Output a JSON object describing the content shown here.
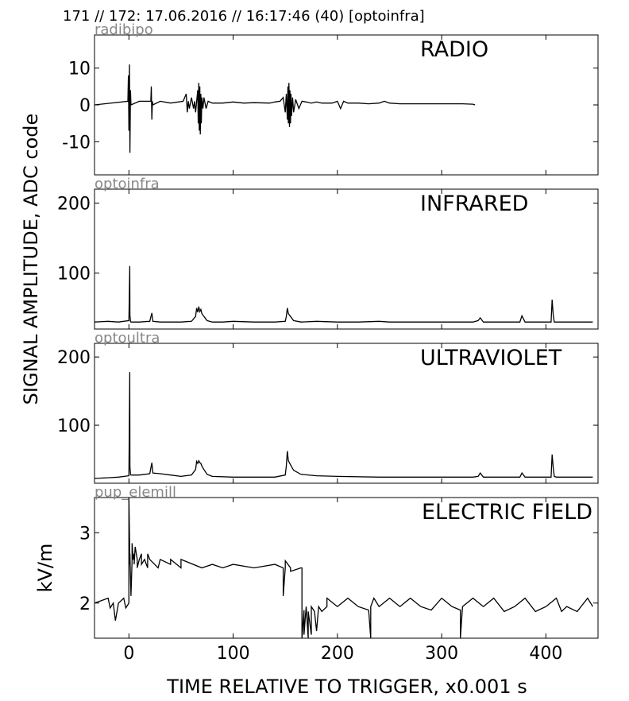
{
  "header": "171 // 172:   17.06.2016 // 16:17:46 (40)  [optoinfra]",
  "ylabel_shared": "SIGNAL AMPLITUDE,  ADC code",
  "xlabel": "TIME RELATIVE TO TRIGGER,   x0.001 s",
  "x_ticks": [
    "0",
    "100",
    "200",
    "300",
    "400"
  ],
  "chart_data": [
    {
      "type": "line",
      "channel": "radibipo",
      "title": "RADIO",
      "ylabel": "",
      "xlim": [
        -33,
        450
      ],
      "ylim": [
        -19,
        19
      ],
      "yticks": [
        10,
        0,
        -10
      ],
      "ytick_labels": [
        "10",
        "0",
        "-10"
      ],
      "series": [
        {
          "x": [
            -33,
            -1,
            -0.5,
            0,
            0.5,
            1,
            1.5,
            2,
            10,
            21,
            21.5,
            22,
            22.5,
            23,
            30,
            40,
            52,
            55,
            56,
            57,
            58,
            60,
            62,
            63,
            64,
            65,
            66,
            66.5,
            67,
            67.5,
            68,
            68.5,
            69,
            69.5,
            70,
            71,
            72,
            74,
            76,
            80,
            90,
            100,
            110,
            120,
            135,
            140,
            145,
            148,
            150,
            151,
            152,
            152.5,
            153,
            153.5,
            154,
            154.5,
            155,
            155.5,
            156,
            157,
            158,
            160,
            163,
            166,
            170,
            175,
            180,
            185,
            190,
            195,
            200,
            203,
            206,
            210,
            220,
            230,
            240,
            245,
            250,
            260,
            270,
            280,
            290,
            300,
            310,
            320,
            330,
            332
          ],
          "y": [
            0,
            1,
            8,
            -7,
            11,
            -13,
            4,
            0,
            1,
            1,
            5,
            -4,
            1,
            0,
            1,
            0.5,
            1,
            3,
            -2,
            1,
            -1,
            2,
            -1,
            1,
            -2,
            1,
            4,
            -5,
            6,
            -7,
            5,
            -8,
            3,
            -5,
            2,
            -1,
            2,
            -1,
            1,
            0.5,
            0.5,
            0.8,
            0.5,
            0.6,
            0.5,
            0.8,
            1,
            2,
            -2,
            3,
            -4,
            5,
            -5,
            6,
            -6,
            4,
            -5,
            3,
            -3,
            2,
            -2,
            1.5,
            -1,
            1,
            0.8,
            0.5,
            0.8,
            0.5,
            0.5,
            0.5,
            1,
            -1,
            1,
            0.5,
            0.5,
            0.3,
            0.5,
            1,
            0.5,
            0.3,
            0.3,
            0.3,
            0.3,
            0.3,
            0.3,
            0.3,
            0.2,
            0
          ]
        }
      ]
    },
    {
      "type": "line",
      "channel": "optoinfra",
      "title": "INFRARED",
      "ylabel": "",
      "xlim": [
        -33,
        450
      ],
      "ylim": [
        20,
        220
      ],
      "yticks": [
        200,
        100
      ],
      "ytick_labels": [
        "200",
        "100"
      ],
      "series": [
        {
          "x": [
            -33,
            -20,
            -10,
            0,
            0.8,
            1,
            1.5,
            2,
            10,
            20,
            22,
            23,
            30,
            50,
            60,
            64,
            65,
            66,
            67,
            68,
            69,
            70,
            72,
            75,
            80,
            90,
            100,
            120,
            140,
            150,
            151,
            152,
            153,
            155,
            158,
            165,
            180,
            200,
            220,
            240,
            250,
            300,
            330,
            335,
            337,
            340,
            360,
            375,
            377,
            380,
            400,
            405,
            406,
            407,
            408,
            410,
            430,
            445
          ],
          "y": [
            30,
            31,
            30,
            32,
            110,
            40,
            31,
            30,
            30,
            31,
            43,
            31,
            30,
            30,
            31,
            38,
            50,
            44,
            52,
            45,
            48,
            42,
            38,
            32,
            30,
            30,
            31,
            30,
            30,
            31,
            38,
            50,
            42,
            38,
            32,
            30,
            31,
            30,
            30,
            31,
            30,
            30,
            30,
            32,
            36,
            30,
            30,
            30,
            39,
            30,
            30,
            30,
            62,
            40,
            30,
            30,
            30,
            30
          ]
        }
      ]
    },
    {
      "type": "line",
      "channel": "optoultra",
      "title": "ULTRAVIOLET",
      "ylabel": "",
      "xlim": [
        -33,
        450
      ],
      "ylim": [
        15,
        220
      ],
      "yticks": [
        200,
        100
      ],
      "ytick_labels": [
        "200",
        "100"
      ],
      "series": [
        {
          "x": [
            -33,
            -20,
            -10,
            0,
            0.8,
            1,
            1.5,
            2,
            10,
            20,
            22,
            23,
            30,
            40,
            50,
            60,
            64,
            65,
            66,
            67,
            68,
            69,
            70,
            72,
            75,
            80,
            100,
            120,
            140,
            150,
            151,
            152,
            153,
            155,
            158,
            165,
            180,
            200,
            240,
            300,
            330,
            335,
            337,
            340,
            375,
            377,
            380,
            405,
            406,
            407,
            408,
            410,
            430,
            445
          ],
          "y": [
            22,
            23,
            24,
            26,
            178,
            40,
            28,
            27,
            27,
            29,
            45,
            30,
            29,
            27,
            25,
            27,
            35,
            47,
            44,
            48,
            45,
            44,
            40,
            35,
            28,
            25,
            24,
            24,
            24,
            27,
            40,
            62,
            48,
            42,
            34,
            28,
            26,
            25,
            24,
            24,
            24,
            25,
            30,
            24,
            24,
            30,
            24,
            24,
            57,
            38,
            25,
            24,
            24,
            24
          ]
        }
      ]
    },
    {
      "type": "line",
      "channel": "pup_elemill",
      "title": "ELECTRIC FIELD",
      "ylabel": "kV/m",
      "xlim": [
        -33,
        450
      ],
      "ylim": [
        1.5,
        3.5
      ],
      "yticks": [
        3,
        2
      ],
      "ytick_labels": [
        "3",
        "2"
      ],
      "series": [
        {
          "x": [
            -33,
            -20,
            -18,
            -15,
            -13,
            -10,
            -5,
            -3,
            0,
            0,
            1,
            1,
            2,
            3,
            3,
            4,
            5,
            5,
            6,
            8,
            8,
            10,
            12,
            12,
            15,
            18,
            18,
            20,
            28,
            30,
            40,
            40,
            50,
            50,
            70,
            80,
            90,
            100,
            120,
            140,
            148,
            148,
            150,
            150,
            155,
            155,
            165,
            166,
            166,
            168,
            168,
            170,
            172,
            172,
            175,
            175,
            178,
            180,
            182,
            185,
            190,
            190,
            200,
            210,
            220,
            230,
            232,
            232,
            235,
            240,
            250,
            260,
            270,
            280,
            290,
            300,
            310,
            318,
            318,
            320,
            330,
            340,
            350,
            360,
            370,
            380,
            390,
            400,
            410,
            415,
            420,
            430,
            440,
            445
          ],
          "y": [
            2,
            2.07,
            1.93,
            2,
            1.75,
            2,
            2.07,
            1.93,
            2,
            3.5,
            2.55,
            2.7,
            2.1,
            2.6,
            2.85,
            2.62,
            2.7,
            2.55,
            2.8,
            2.62,
            2.5,
            2.62,
            2.7,
            2.55,
            2.62,
            2.5,
            2.7,
            2.62,
            2.5,
            2.62,
            2.55,
            2.62,
            2.5,
            2.62,
            2.5,
            2.55,
            2.5,
            2.55,
            2.5,
            2.55,
            2.5,
            2.1,
            2.5,
            2.6,
            2.5,
            2.45,
            2.5,
            2.5,
            1.5,
            1.9,
            1.55,
            1.95,
            1.5,
            1.88,
            1.55,
            1.95,
            1.88,
            1.6,
            1.95,
            1.88,
            1.95,
            2.07,
            1.95,
            2.07,
            1.95,
            1.9,
            1.5,
            1.95,
            2.07,
            1.95,
            2.07,
            1.95,
            2.07,
            1.95,
            1.9,
            2.07,
            1.95,
            1.9,
            1.5,
            1.95,
            2.07,
            1.95,
            2.07,
            1.88,
            1.95,
            2.07,
            1.88,
            1.95,
            2.07,
            1.88,
            1.95,
            1.88,
            2.07,
            1.95
          ]
        }
      ]
    }
  ]
}
